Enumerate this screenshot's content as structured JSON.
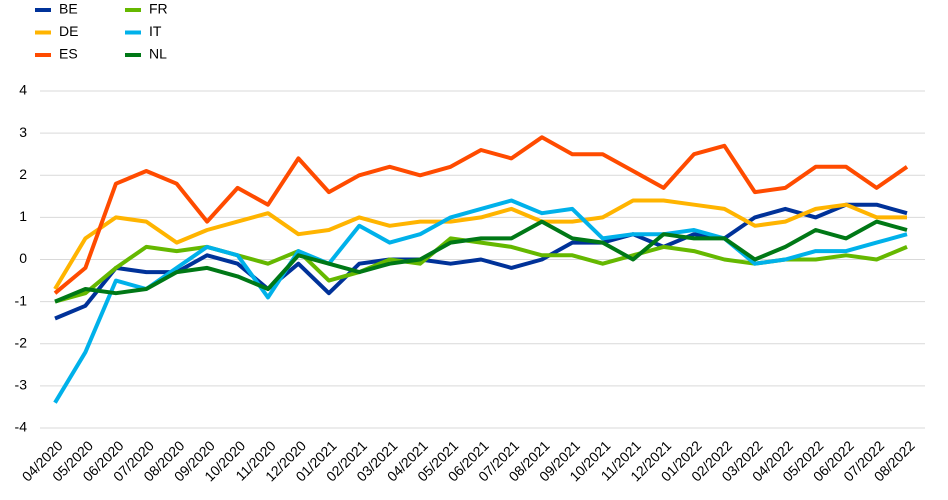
{
  "chart_data": {
    "type": "line",
    "categories": [
      "04/2020",
      "05/2020",
      "06/2020",
      "07/2020",
      "08/2020",
      "09/2020",
      "10/2020",
      "11/2020",
      "12/2020",
      "01/2021",
      "02/2021",
      "03/2021",
      "04/2021",
      "05/2021",
      "06/2021",
      "07/2021",
      "08/2021",
      "09/2021",
      "10/2021",
      "11/2021",
      "12/2021",
      "01/2022",
      "02/2022",
      "03/2022",
      "04/2022",
      "05/2022",
      "06/2022",
      "07/2022",
      "08/2022"
    ],
    "series": [
      {
        "name": "BE",
        "color": "#003299",
        "values": [
          -1.4,
          -1.1,
          -0.2,
          -0.3,
          -0.3,
          0.1,
          -0.1,
          -0.7,
          -0.1,
          -0.8,
          -0.1,
          0.0,
          0.0,
          -0.1,
          0.0,
          -0.2,
          0.0,
          0.4,
          0.4,
          0.6,
          0.3,
          0.6,
          0.5,
          1.0,
          1.2,
          1.0,
          1.3,
          1.3,
          1.1
        ]
      },
      {
        "name": "DE",
        "color": "#ffb400",
        "values": [
          -0.7,
          0.5,
          1.0,
          0.9,
          0.4,
          0.7,
          0.9,
          1.1,
          0.6,
          0.7,
          1.0,
          0.8,
          0.9,
          0.9,
          1.0,
          1.2,
          0.9,
          0.9,
          1.0,
          1.4,
          1.4,
          1.3,
          1.2,
          0.8,
          0.9,
          1.2,
          1.3,
          1.0,
          1.0
        ]
      },
      {
        "name": "ES",
        "color": "#ff4b00",
        "values": [
          -0.8,
          -0.2,
          1.8,
          2.1,
          1.8,
          0.9,
          1.7,
          1.3,
          2.4,
          1.6,
          2.0,
          2.2,
          2.0,
          2.2,
          2.6,
          2.4,
          2.9,
          2.5,
          2.5,
          2.1,
          1.7,
          2.5,
          2.7,
          1.6,
          1.7,
          2.2,
          2.2,
          1.7,
          2.2
        ]
      },
      {
        "name": "FR",
        "color": "#65b800",
        "values": [
          -1.0,
          -0.8,
          -0.2,
          0.3,
          0.2,
          0.3,
          0.1,
          -0.1,
          0.2,
          -0.5,
          -0.3,
          0.0,
          -0.1,
          0.5,
          0.4,
          0.3,
          0.1,
          0.1,
          -0.1,
          0.1,
          0.3,
          0.2,
          0.0,
          -0.1,
          0.0,
          0.0,
          0.1,
          0.0,
          0.3
        ]
      },
      {
        "name": "IT",
        "color": "#00b1ea",
        "values": [
          -3.4,
          -2.2,
          -0.5,
          -0.7,
          -0.2,
          0.3,
          0.1,
          -0.9,
          0.2,
          -0.1,
          0.8,
          0.4,
          0.6,
          1.0,
          1.2,
          1.4,
          1.1,
          1.2,
          0.5,
          0.6,
          0.6,
          0.7,
          0.5,
          -0.1,
          0.0,
          0.2,
          0.2,
          0.4,
          0.6
        ]
      },
      {
        "name": "NL",
        "color": "#007816",
        "values": [
          -1.0,
          -0.7,
          -0.8,
          -0.7,
          -0.3,
          -0.2,
          -0.4,
          -0.7,
          0.1,
          -0.1,
          -0.3,
          -0.1,
          0.0,
          0.4,
          0.5,
          0.5,
          0.9,
          0.5,
          0.4,
          0.0,
          0.6,
          0.5,
          0.5,
          0.0,
          0.3,
          0.7,
          0.5,
          0.9,
          0.7
        ]
      }
    ],
    "ylim": [
      -4,
      4
    ],
    "yticks": [
      -4,
      -3,
      -2,
      -1,
      0,
      1,
      2,
      3,
      4
    ],
    "grid": true,
    "legend": "top-left"
  }
}
